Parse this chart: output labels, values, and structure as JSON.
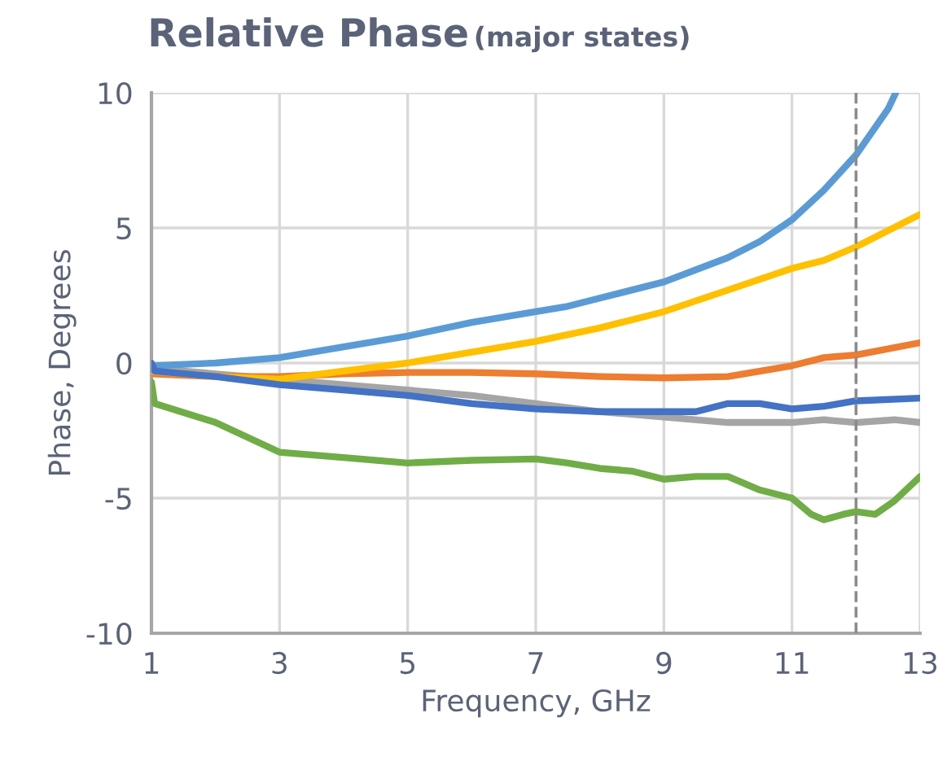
{
  "chart_data": {
    "type": "line",
    "title": "Relative Phase",
    "subtitle": "(major states)",
    "xlabel": "Frequency, GHz",
    "ylabel": "Phase, Degrees",
    "xlim": [
      1,
      13
    ],
    "xticks": [
      1,
      3,
      5,
      7,
      9,
      11,
      13
    ],
    "ylim": [
      -10,
      10
    ],
    "yticks": [
      -10,
      -5,
      0,
      5,
      10
    ],
    "grid": true,
    "legend": false,
    "marker": "none",
    "line_style": "solid",
    "ref_lines": [
      {
        "axis": "x",
        "value": 12,
        "color": "#8c8c8c",
        "line_style": "dashed"
      }
    ],
    "series": [
      {
        "color": "#a5a5a5",
        "x": [
          1,
          2,
          3,
          4,
          5,
          6,
          7,
          8,
          9,
          10,
          11,
          11.5,
          12,
          12.6,
          13
        ],
        "values": [
          -0.2,
          -0.4,
          -0.6,
          -0.8,
          -1.0,
          -1.2,
          -1.5,
          -1.8,
          -2.0,
          -2.2,
          -2.2,
          -2.1,
          -2.2,
          -2.1,
          -2.2
        ]
      },
      {
        "color": "#ed7d31",
        "x": [
          1,
          2,
          3,
          4,
          5,
          6,
          7,
          8,
          9,
          10,
          11,
          11.5,
          12,
          13
        ],
        "values": [
          -0.4,
          -0.5,
          -0.5,
          -0.4,
          -0.35,
          -0.35,
          -0.4,
          -0.5,
          -0.55,
          -0.5,
          -0.1,
          0.2,
          0.3,
          0.75
        ]
      },
      {
        "color": "#ffc000",
        "x": [
          1,
          2,
          3,
          4,
          5,
          6,
          7,
          8,
          9,
          10,
          11,
          11.5,
          12,
          13
        ],
        "values": [
          -0.3,
          -0.5,
          -0.6,
          -0.3,
          0,
          0.4,
          0.8,
          1.3,
          1.9,
          2.7,
          3.5,
          3.8,
          4.3,
          5.5
        ]
      },
      {
        "color": "#5b9bd5",
        "x": [
          1,
          2,
          3,
          4,
          5,
          6,
          7,
          7.5,
          8,
          9,
          10,
          10.5,
          11,
          11.5,
          12,
          12.5,
          12.62
        ],
        "values": [
          -0.1,
          0,
          0.2,
          0.6,
          1,
          1.5,
          1.9,
          2.1,
          2.4,
          3,
          3.9,
          4.5,
          5.3,
          6.4,
          7.7,
          9.4,
          10
        ]
      },
      {
        "color": "#4472c4",
        "x": [
          1,
          1.05,
          2,
          3,
          4,
          5,
          6,
          7,
          8,
          9,
          9.5,
          10,
          10.5,
          11,
          11.5,
          12,
          13
        ],
        "values": [
          0,
          -0.3,
          -0.5,
          -0.8,
          -1.0,
          -1.2,
          -1.5,
          -1.7,
          -1.8,
          -1.8,
          -1.8,
          -1.5,
          -1.5,
          -1.7,
          -1.6,
          -1.4,
          -1.3
        ]
      },
      {
        "color": "#70ad47",
        "x": [
          1,
          1.05,
          2,
          3,
          4,
          5,
          6,
          7,
          7.5,
          8,
          8.5,
          9,
          9.5,
          10,
          10.5,
          11,
          11.3,
          11.5,
          11.8,
          12,
          12.3,
          12.6,
          13
        ],
        "values": [
          -0.7,
          -1.5,
          -2.2,
          -3.3,
          -3.5,
          -3.7,
          -3.6,
          -3.55,
          -3.7,
          -3.9,
          -4.0,
          -4.3,
          -4.2,
          -4.2,
          -4.7,
          -5.0,
          -5.6,
          -5.8,
          -5.6,
          -5.5,
          -5.6,
          -5.1,
          -4.2
        ]
      }
    ]
  }
}
